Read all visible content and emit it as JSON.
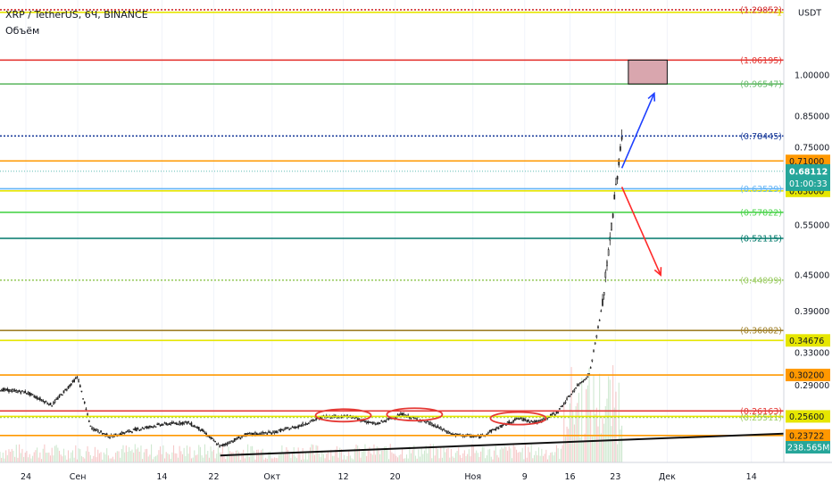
{
  "header": {
    "symbol": "XRP / TetherUS, 6Ч, BINANCE",
    "indicator": "Объём"
  },
  "colors": {
    "background": "#ffffff",
    "up": "#26a69a",
    "down": "#ef5350",
    "price_axis_text": "#131722",
    "current_price_bg": "#26a69a"
  },
  "chart_data": {
    "type": "candlestick",
    "title": "XRP / TetherUS, 6Ч, BINANCE",
    "currency": "USDT",
    "y_scale": "log",
    "ylim": [
      0.213,
      1.35
    ],
    "x_ticks": [
      "24",
      "Сен",
      "14",
      "22",
      "Окт",
      "12",
      "20",
      "Ноя",
      "9",
      "16",
      "23",
      "Дек",
      "14"
    ],
    "price_ticks": [
      "1.00000",
      "0.85000",
      "0.75000",
      "0.55000",
      "0.45000",
      "0.39000",
      "0.33000",
      "0.29000"
    ],
    "current_price": "0.68112",
    "countdown": "01:00:33",
    "volume_label": "238.565M",
    "price_path": [
      {
        "date": "2020-08-20",
        "price": 0.285
      },
      {
        "date": "2020-08-24",
        "price": 0.282
      },
      {
        "date": "2020-08-28",
        "price": 0.268
      },
      {
        "date": "2020-09-01",
        "price": 0.3
      },
      {
        "date": "2020-09-03",
        "price": 0.245
      },
      {
        "date": "2020-09-06",
        "price": 0.236
      },
      {
        "date": "2020-09-10",
        "price": 0.243
      },
      {
        "date": "2020-09-14",
        "price": 0.248
      },
      {
        "date": "2020-09-18",
        "price": 0.25
      },
      {
        "date": "2020-09-20",
        "price": 0.243
      },
      {
        "date": "2020-09-23",
        "price": 0.227
      },
      {
        "date": "2020-09-27",
        "price": 0.238
      },
      {
        "date": "2020-10-01",
        "price": 0.24
      },
      {
        "date": "2020-10-05",
        "price": 0.246
      },
      {
        "date": "2020-10-09",
        "price": 0.256
      },
      {
        "date": "2020-10-13",
        "price": 0.256
      },
      {
        "date": "2020-10-17",
        "price": 0.248
      },
      {
        "date": "2020-10-21",
        "price": 0.258
      },
      {
        "date": "2020-10-25",
        "price": 0.25
      },
      {
        "date": "2020-10-29",
        "price": 0.238
      },
      {
        "date": "2020-11-02",
        "price": 0.236
      },
      {
        "date": "2020-11-05",
        "price": 0.245
      },
      {
        "date": "2020-11-08",
        "price": 0.254
      },
      {
        "date": "2020-11-11",
        "price": 0.25
      },
      {
        "date": "2020-11-14",
        "price": 0.26
      },
      {
        "date": "2020-11-17",
        "price": 0.288
      },
      {
        "date": "2020-11-19",
        "price": 0.303
      },
      {
        "date": "2020-11-21",
        "price": 0.4
      },
      {
        "date": "2020-11-22",
        "price": 0.5
      },
      {
        "date": "2020-11-23",
        "price": 0.63
      },
      {
        "date": "2020-11-24",
        "price": 0.78
      },
      {
        "date": "2020-11-24",
        "price": 0.68112
      }
    ],
    "levels": [
      {
        "label": "(1.29852)",
        "value": 1.29852,
        "color": "#d32f2f",
        "style": "dotted",
        "label_style": "text"
      },
      {
        "label": "1",
        "value": 1.285,
        "color": "#e6e600",
        "style": "solid",
        "label_style": "text"
      },
      {
        "label": "(1.06195)",
        "value": 1.06195,
        "color": "#e53935",
        "style": "solid",
        "label_style": "text"
      },
      {
        "label": "(0.96547)",
        "value": 0.96547,
        "color": "#66bb6a",
        "style": "solid",
        "label_style": "text"
      },
      {
        "label": "(0.78445)",
        "value": 0.78445,
        "color": "#1e3f9c",
        "style": "dotted",
        "label_style": "text"
      },
      {
        "label": "0.71000",
        "value": 0.71,
        "color": "#ff9800",
        "style": "solid",
        "label_style": "box"
      },
      {
        "label": "(0.63529)",
        "value": 0.63529,
        "color": "#64b5f6",
        "style": "solid",
        "label_style": "text"
      },
      {
        "label": "0.63000",
        "value": 0.63,
        "color": "#e6e600",
        "style": "solid",
        "label_style": "box"
      },
      {
        "label": "(0.57822)",
        "value": 0.57822,
        "color": "#4cd44c",
        "style": "solid",
        "label_style": "text"
      },
      {
        "label": "(0.52115)",
        "value": 0.52115,
        "color": "#00796b",
        "style": "solid",
        "label_style": "text"
      },
      {
        "label": "(0.44099)",
        "value": 0.44099,
        "color": "#9ccc65",
        "style": "dotted",
        "label_style": "text"
      },
      {
        "label": "(0.36082)",
        "value": 0.36082,
        "color": "#a0802a",
        "style": "solid",
        "label_style": "text"
      },
      {
        "label": "0.34676",
        "value": 0.34676,
        "color": "#e6e600",
        "style": "solid",
        "label_style": "box"
      },
      {
        "label": "0.30200",
        "value": 0.302,
        "color": "#ff9800",
        "style": "solid",
        "label_style": "box"
      },
      {
        "label": "(0.26163)",
        "value": 0.26163,
        "color": "#e53935",
        "style": "solid",
        "label_style": "text"
      },
      {
        "label": "(0.25511)",
        "value": 0.25511,
        "color": "#9ccc65",
        "style": "dotted",
        "label_style": "text"
      },
      {
        "label": "0.25600",
        "value": 0.256,
        "color": "#e6e600",
        "style": "solid",
        "label_style": "box"
      },
      {
        "label": "0.23722",
        "value": 0.23722,
        "color": "#ff9800",
        "style": "solid",
        "label_style": "box"
      }
    ],
    "annotations": {
      "target_zone": {
        "price_low": 0.96547,
        "price_high": 1.06195,
        "date_start": "2020-11-25",
        "date_end": "2020-12-01",
        "color": "#d9a6ae"
      },
      "up_arrow": {
        "date_start": "2020-11-24",
        "price_start": 0.69,
        "date_end": "2020-11-29",
        "price_end": 0.93,
        "color": "#1e40ff"
      },
      "down_arrow": {
        "date_start": "2020-11-24",
        "price_start": 0.64,
        "date_end": "2020-11-30",
        "price_end": 0.45,
        "color": "#ff2a2a"
      },
      "trendline": {
        "date_start": "2020-09-23",
        "price_start": 0.219,
        "date_end": "2020-12-19",
        "price_end": 0.239,
        "color": "#111111"
      },
      "ellipses": [
        {
          "date": "2020-10-12",
          "price": 0.257
        },
        {
          "date": "2020-10-23",
          "price": 0.258
        },
        {
          "date": "2020-11-08",
          "price": 0.254
        }
      ]
    }
  }
}
